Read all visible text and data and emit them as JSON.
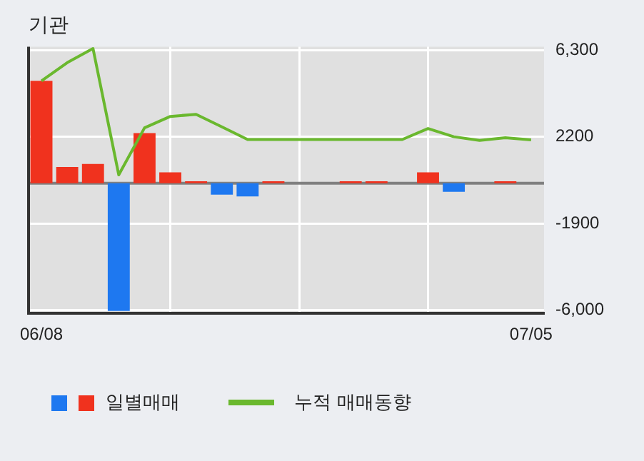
{
  "chart_data": {
    "type": "bar",
    "title": "기관",
    "categories": [
      "06/08",
      null,
      null,
      null,
      null,
      null,
      null,
      null,
      null,
      null,
      null,
      null,
      null,
      null,
      null,
      null,
      null,
      null,
      null,
      "07/05"
    ],
    "series": [
      {
        "name": "일별매매",
        "colors": [
          "#f0321e",
          "#f0321e",
          "#f0321e",
          "#1e78f0",
          "#f0321e",
          "#f0321e",
          "#f0321e",
          "#1e78f0",
          "#1e78f0",
          "#f0321e",
          null,
          null,
          "#f0321e",
          "#f0321e",
          null,
          "#f0321e",
          "#1e78f0",
          null,
          "#f0321e",
          null
        ],
        "values": [
          4840,
          770,
          910,
          -6030,
          2370,
          520,
          100,
          -540,
          -620,
          100,
          0,
          0,
          100,
          100,
          0,
          520,
          -400,
          0,
          100,
          0
        ]
      },
      {
        "name": "누적 매매동향",
        "type": "line",
        "color": "#6ab82e",
        "values": [
          4840,
          5700,
          6370,
          400,
          2620,
          3160,
          3260,
          2670,
          2070,
          2070,
          2070,
          2070,
          2070,
          2070,
          2070,
          2590,
          2200,
          2030,
          2150,
          2050
        ]
      }
    ],
    "ylim": [
      -6150,
      6450
    ],
    "yticks": [
      {
        "value": 6300,
        "label": "6,300"
      },
      2200,
      -1900,
      {
        "value": -6000,
        "label": "-6,000"
      }
    ],
    "ref_lines": [
      {
        "axis": "y",
        "value": 0,
        "color": "#808080"
      }
    ],
    "grid": true,
    "legend": "bottom"
  }
}
